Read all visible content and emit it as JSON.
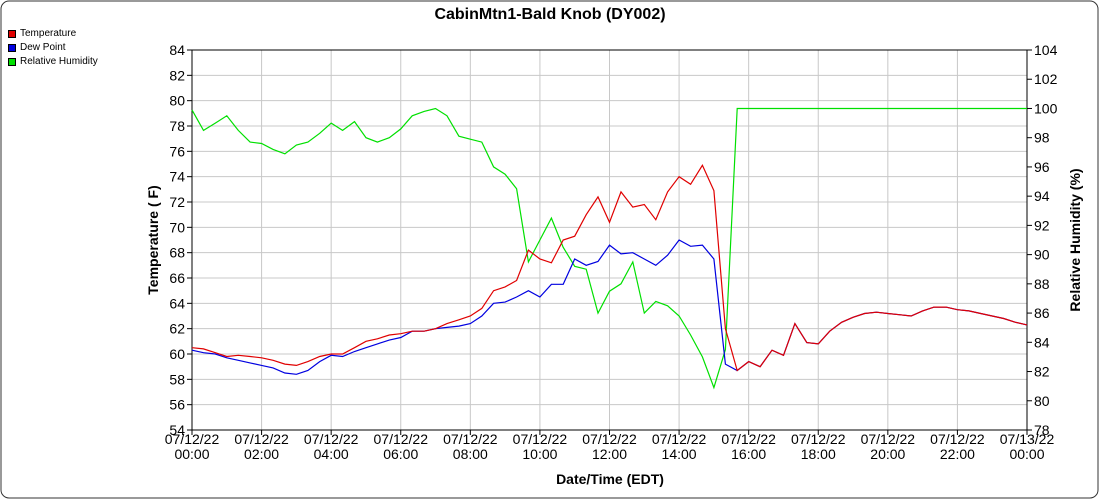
{
  "chart_data": {
    "type": "line",
    "title": "CabinMtn1-Bald Knob (DY002)",
    "x_label": "Date/Time (EDT)",
    "y_label": "Temperature ( F)",
    "y2_label": "Relative Humidity (%)",
    "grid": true,
    "legend": "top-left",
    "xlim": [
      0,
      24
    ],
    "xticks": [
      {
        "value": 0,
        "label": "07/12/22\n00:00"
      },
      {
        "value": 2,
        "label": "07/12/22\n02:00"
      },
      {
        "value": 4,
        "label": "07/12/22\n04:00"
      },
      {
        "value": 6,
        "label": "07/12/22\n06:00"
      },
      {
        "value": 8,
        "label": "07/12/22\n08:00"
      },
      {
        "value": 10,
        "label": "07/12/22\n10:00"
      },
      {
        "value": 12,
        "label": "07/12/22\n12:00"
      },
      {
        "value": 14,
        "label": "07/12/22\n14:00"
      },
      {
        "value": 16,
        "label": "07/12/22\n16:00"
      },
      {
        "value": 18,
        "label": "07/12/22\n18:00"
      },
      {
        "value": 20,
        "label": "07/12/22\n20:00"
      },
      {
        "value": 22,
        "label": "07/12/22\n22:00"
      },
      {
        "value": 24,
        "label": "07/13/22\n00:00"
      }
    ],
    "ylim": [
      54,
      84
    ],
    "yticks": [
      54,
      56,
      58,
      60,
      62,
      64,
      66,
      68,
      70,
      72,
      74,
      76,
      78,
      80,
      82,
      84
    ],
    "y2lim": [
      78,
      104
    ],
    "y2ticks": [
      78,
      80,
      82,
      84,
      86,
      88,
      90,
      92,
      94,
      96,
      98,
      100,
      102,
      104
    ],
    "x": [
      0,
      0.33,
      0.67,
      1,
      1.33,
      1.67,
      2,
      2.33,
      2.67,
      3,
      3.33,
      3.67,
      4,
      4.33,
      4.67,
      5,
      5.33,
      5.67,
      6,
      6.33,
      6.67,
      7,
      7.33,
      7.67,
      8,
      8.33,
      8.67,
      9,
      9.33,
      9.67,
      10,
      10.33,
      10.67,
      11,
      11.33,
      11.67,
      12,
      12.33,
      12.67,
      13,
      13.33,
      13.67,
      14,
      14.33,
      14.67,
      15,
      15.33,
      15.67,
      16,
      16.33,
      16.67,
      17,
      17.33,
      17.67,
      18,
      18.33,
      18.67,
      19,
      19.33,
      19.67,
      20,
      20.33,
      20.67,
      21,
      21.33,
      21.67,
      22,
      22.33,
      22.67,
      23,
      23.33,
      23.67,
      24
    ],
    "series": [
      {
        "name": "Temperature",
        "color": "#e00000",
        "values": [
          60.5,
          60.4,
          60.1,
          59.8,
          59.9,
          59.8,
          59.7,
          59.5,
          59.2,
          59.1,
          59.4,
          59.8,
          60.0,
          60.0,
          60.5,
          61.0,
          61.2,
          61.5,
          61.6,
          61.8,
          61.8,
          62.0,
          62.4,
          62.7,
          63.0,
          63.6,
          65.0,
          65.3,
          65.8,
          68.2,
          67.5,
          67.2,
          69.0,
          69.3,
          71.0,
          72.4,
          70.4,
          72.8,
          71.6,
          71.8,
          70.6,
          72.8,
          74.0,
          73.4,
          74.9,
          72.9,
          62.0,
          58.7,
          59.4,
          59.0,
          60.3,
          59.9,
          62.4,
          60.9,
          60.8,
          61.8,
          62.5,
          62.9,
          63.2,
          63.3,
          63.2,
          63.1,
          63.0,
          63.4,
          63.7,
          63.7,
          63.5,
          63.4,
          63.2,
          63.0,
          62.8,
          62.5,
          62.3
        ]
      },
      {
        "name": "Dew Point",
        "color": "#0000e0",
        "values": [
          60.3,
          60.1,
          60.0,
          59.7,
          59.5,
          59.3,
          59.1,
          58.9,
          58.5,
          58.4,
          58.7,
          59.4,
          59.9,
          59.8,
          60.2,
          60.5,
          60.8,
          61.1,
          61.3,
          61.8,
          61.8,
          62.0,
          62.1,
          62.2,
          62.4,
          63.0,
          64.0,
          64.1,
          64.5,
          65.0,
          64.5,
          65.5,
          65.5,
          67.5,
          67.0,
          67.3,
          68.6,
          67.9,
          68.0,
          67.5,
          67.0,
          67.8,
          69.0,
          68.5,
          68.6,
          67.5,
          59.2,
          58.7,
          59.4,
          59.0,
          60.3,
          59.9,
          62.4,
          60.9,
          60.8,
          61.8,
          62.5,
          62.9,
          63.2,
          63.3,
          63.2,
          63.1,
          63.0,
          63.4,
          63.7,
          63.7,
          63.5,
          63.4,
          63.2,
          63.0,
          62.8,
          62.5,
          62.3
        ]
      },
      {
        "name": "Relative Humidity",
        "color": "#00e000",
        "axis": "y2",
        "values": [
          99.9,
          98.5,
          99.0,
          99.5,
          98.5,
          97.7,
          97.6,
          97.2,
          96.9,
          97.5,
          97.7,
          98.3,
          99.0,
          98.5,
          99.1,
          98.0,
          97.7,
          98.0,
          98.6,
          99.5,
          99.8,
          100.0,
          99.5,
          98.1,
          97.9,
          97.7,
          96.0,
          95.5,
          94.5,
          89.5,
          91.0,
          92.5,
          90.5,
          89.2,
          89.0,
          86.0,
          87.5,
          88.0,
          89.5,
          86.0,
          86.8,
          86.5,
          85.8,
          84.5,
          83.0,
          80.9,
          83.5,
          100.0,
          100.0,
          100.0,
          100.0,
          100.0,
          100.0,
          100.0,
          100.0,
          100.0,
          100.0,
          100.0,
          100.0,
          100.0,
          100.0,
          100.0,
          100.0,
          100.0,
          100.0,
          100.0,
          100.0,
          100.0,
          100.0,
          100.0,
          100.0,
          100.0,
          100.0
        ]
      }
    ]
  }
}
